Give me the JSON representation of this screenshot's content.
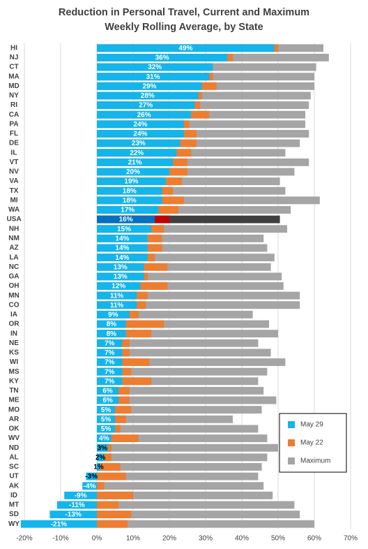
{
  "chart_data": {
    "type": "overlapping-bar",
    "orientation": "horizontal",
    "title": "Reduction in Personal Travel, Current and Maximum Weekly Rolling Average, by State",
    "categories": [
      "HI",
      "NJ",
      "CT",
      "MA",
      "MD",
      "NY",
      "RI",
      "CA",
      "PA",
      "FL",
      "DE",
      "IL",
      "VT",
      "NV",
      "VA",
      "TX",
      "MI",
      "WA",
      "USA",
      "NH",
      "NM",
      "AZ",
      "LA",
      "NC",
      "GA",
      "OH",
      "MN",
      "CO",
      "IA",
      "OR",
      "IN",
      "NE",
      "KS",
      "WI",
      "MS",
      "KY",
      "TN",
      "ME",
      "MO",
      "AR",
      "OK",
      "WV",
      "ND",
      "AL",
      "SC",
      "UT",
      "AK",
      "ID",
      "MT",
      "SD",
      "WY"
    ],
    "series": [
      {
        "name": "Maximum",
        "color": "#a5a5a5",
        "highlight_color": "#3f3f3f",
        "values": [
          62.5,
          64,
          60.5,
          60,
          60,
          59,
          58.5,
          57.5,
          57.5,
          58.5,
          56,
          52,
          58.5,
          54.5,
          50.5,
          52,
          61.5,
          53.5,
          50.5,
          52.5,
          46,
          47,
          49,
          48,
          51,
          51.5,
          56,
          56,
          43,
          47.5,
          50,
          44.5,
          48,
          52,
          47,
          44.5,
          46,
          49.5,
          45.5,
          37.5,
          44.5,
          47,
          50,
          47,
          45.5,
          44.5,
          46,
          48.5,
          54.5,
          56,
          60
        ]
      },
      {
        "name": "May 22",
        "color": "#ed7d31",
        "highlight_color": "#c00000",
        "values": [
          50,
          37.5,
          32,
          32,
          33,
          29,
          28.5,
          31,
          25.5,
          27.5,
          27.5,
          26,
          25,
          25,
          23.5,
          21,
          24,
          22.5,
          20,
          18.5,
          18,
          18,
          16,
          19.5,
          14,
          19.5,
          14,
          13.5,
          11.5,
          18.5,
          15,
          9,
          9,
          14.5,
          9.5,
          15,
          9,
          9,
          9.5,
          8,
          6.5,
          11.5,
          4,
          4,
          6.5,
          8,
          2,
          10,
          6,
          9.5,
          8.5
        ]
      },
      {
        "name": "May 29",
        "color": "#13b5ea",
        "highlight_color": "#0070c0",
        "values": [
          49,
          36,
          32,
          31,
          29,
          28,
          27,
          26,
          24,
          24,
          23,
          22,
          21,
          20,
          19,
          18,
          18,
          17,
          16,
          15,
          14,
          14,
          14,
          13,
          13,
          12,
          11,
          11,
          9,
          8,
          8,
          7,
          7,
          7,
          7,
          7,
          6,
          6,
          5,
          5,
          5,
          4,
          3,
          2,
          1,
          -3,
          -4,
          -9,
          -11,
          -13,
          -21
        ],
        "value_labels": [
          "49%",
          "36%",
          "32%",
          "31%",
          "29%",
          "28%",
          "27%",
          "26%",
          "24%",
          "24%",
          "23%",
          "22%",
          "21%",
          "20%",
          "19%",
          "18%",
          "18%",
          "17%",
          "16%",
          "15%",
          "14%",
          "14%",
          "14%",
          "13%",
          "13%",
          "12%",
          "11%",
          "11%",
          "9%",
          "8%",
          "8%",
          "7%",
          "7%",
          "7%",
          "7%",
          "7%",
          "6%",
          "6%",
          "5%",
          "5%",
          "5%",
          "4%",
          "3%",
          "2%",
          "1%",
          "-3%",
          "-4%",
          "-9%",
          "-11%",
          "-13%",
          "-21%"
        ]
      }
    ],
    "highlight_index": 18,
    "xlim": [
      -20,
      70
    ],
    "xticks": [
      {
        "value": -20,
        "label": "-20%"
      },
      {
        "value": -10,
        "label": "-10%"
      },
      {
        "value": 0,
        "label": "0%"
      },
      {
        "value": 10,
        "label": "10%"
      },
      {
        "value": 20,
        "label": "20%"
      },
      {
        "value": 30,
        "label": "30%"
      },
      {
        "value": 40,
        "label": "40%"
      },
      {
        "value": 50,
        "label": "50%"
      },
      {
        "value": 60,
        "label": "60%"
      },
      {
        "value": 70,
        "label": "70%"
      }
    ],
    "grid": true,
    "legend": "lower right",
    "legend_order": [
      2,
      1,
      0
    ]
  }
}
